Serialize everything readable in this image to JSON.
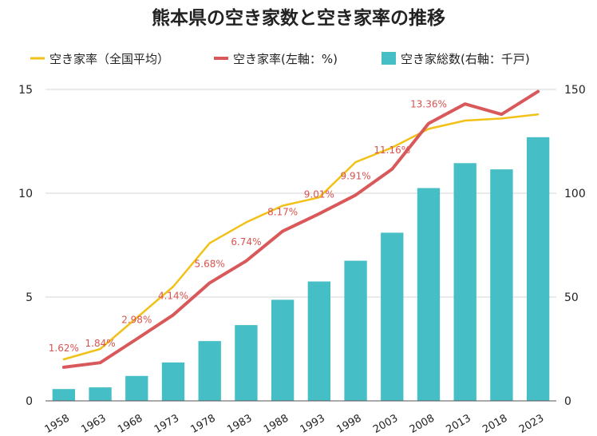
{
  "chart_data": {
    "type": "bar",
    "title": "熊本県の空き家数と空き家率の推移",
    "categories": [
      "1958",
      "1963",
      "1968",
      "1973",
      "1978",
      "1983",
      "1988",
      "1993",
      "1998",
      "2003",
      "2008",
      "2013",
      "2018",
      "2023"
    ],
    "series": [
      {
        "name": "空き家率（全国平均）",
        "type": "line",
        "axis": "left",
        "color": "#f2c118",
        "values": [
          2.0,
          2.5,
          4.0,
          5.5,
          7.6,
          8.6,
          9.4,
          9.8,
          11.5,
          12.2,
          13.1,
          13.5,
          13.6,
          13.8
        ]
      },
      {
        "name": "空き家率(左軸：%)",
        "type": "line",
        "axis": "left",
        "color": "#d9585a",
        "values": [
          1.62,
          1.84,
          2.98,
          4.14,
          5.68,
          6.74,
          8.17,
          9.01,
          9.91,
          11.16,
          13.36,
          14.3,
          13.8,
          14.9
        ],
        "data_labels": [
          "1.62%",
          "1.84%",
          "2.98%",
          "4.14%",
          "5.68%",
          "6.74%",
          "8.17%",
          "9.01%",
          "9.91%",
          "11.16%",
          "13.36%",
          "",
          "",
          ""
        ]
      },
      {
        "name": "空き家総数(右軸：千戸)",
        "type": "bar",
        "axis": "right",
        "color": "#46bec6",
        "values": [
          5.7,
          6.5,
          12,
          18.5,
          28.8,
          36.5,
          48.7,
          57.5,
          67.5,
          81,
          102.5,
          114.5,
          111.5,
          127
        ]
      }
    ],
    "y_left": {
      "min": 0,
      "max": 15,
      "ticks": [
        "0",
        "5",
        "10",
        "15"
      ]
    },
    "y_right": {
      "min": 0,
      "max": 150,
      "ticks": [
        "0",
        "50",
        "100",
        "150"
      ]
    },
    "legend_position": "top",
    "grid": true
  }
}
